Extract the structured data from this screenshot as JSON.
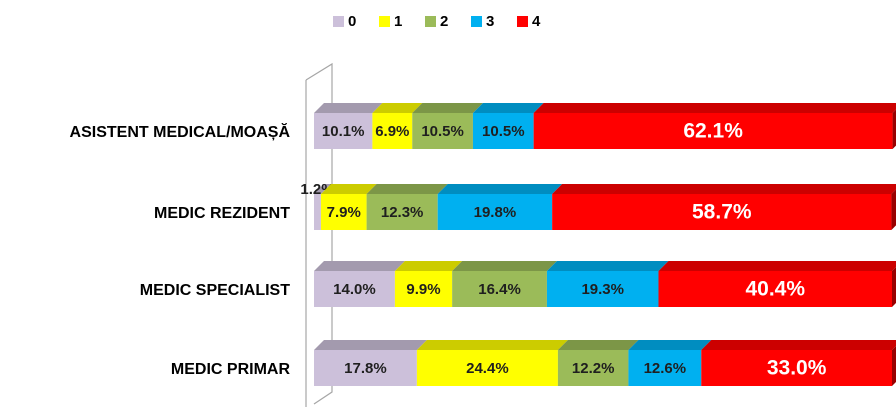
{
  "chart_data": {
    "type": "stacked-bar-horizontal",
    "categories": [
      "ASISTENT MEDICAL/MOAȘĂ",
      "MEDIC REZIDENT",
      "MEDIC SPECIALIST",
      "MEDIC PRIMAR"
    ],
    "series": [
      {
        "name": "0",
        "color": "#ccc0da",
        "values": [
          10.1,
          1.2,
          14.0,
          17.8
        ],
        "value_labels": [
          "10.1%",
          "1.2%",
          "14.0%",
          "17.8%"
        ]
      },
      {
        "name": "1",
        "color": "#ffff00",
        "values": [
          6.9,
          7.9,
          9.9,
          24.4
        ],
        "value_labels": [
          "6.9%",
          "7.9%",
          "9.9%",
          "24.4%"
        ]
      },
      {
        "name": "2",
        "color": "#9bbb59",
        "values": [
          10.5,
          12.3,
          16.4,
          12.2
        ],
        "value_labels": [
          "10.5%",
          "12.3%",
          "16.4%",
          "12.2%"
        ]
      },
      {
        "name": "3",
        "color": "#00b0f0",
        "values": [
          10.5,
          19.8,
          19.3,
          12.6
        ],
        "value_labels": [
          "10.5%",
          "19.8%",
          "19.3%",
          "12.6%"
        ]
      },
      {
        "name": "4",
        "color": "#ff0000",
        "values": [
          62.1,
          58.7,
          40.4,
          33.0
        ],
        "value_labels": [
          "62.1%",
          "58.7%",
          "40.4%",
          "33.0%"
        ]
      }
    ],
    "legend": "top"
  }
}
